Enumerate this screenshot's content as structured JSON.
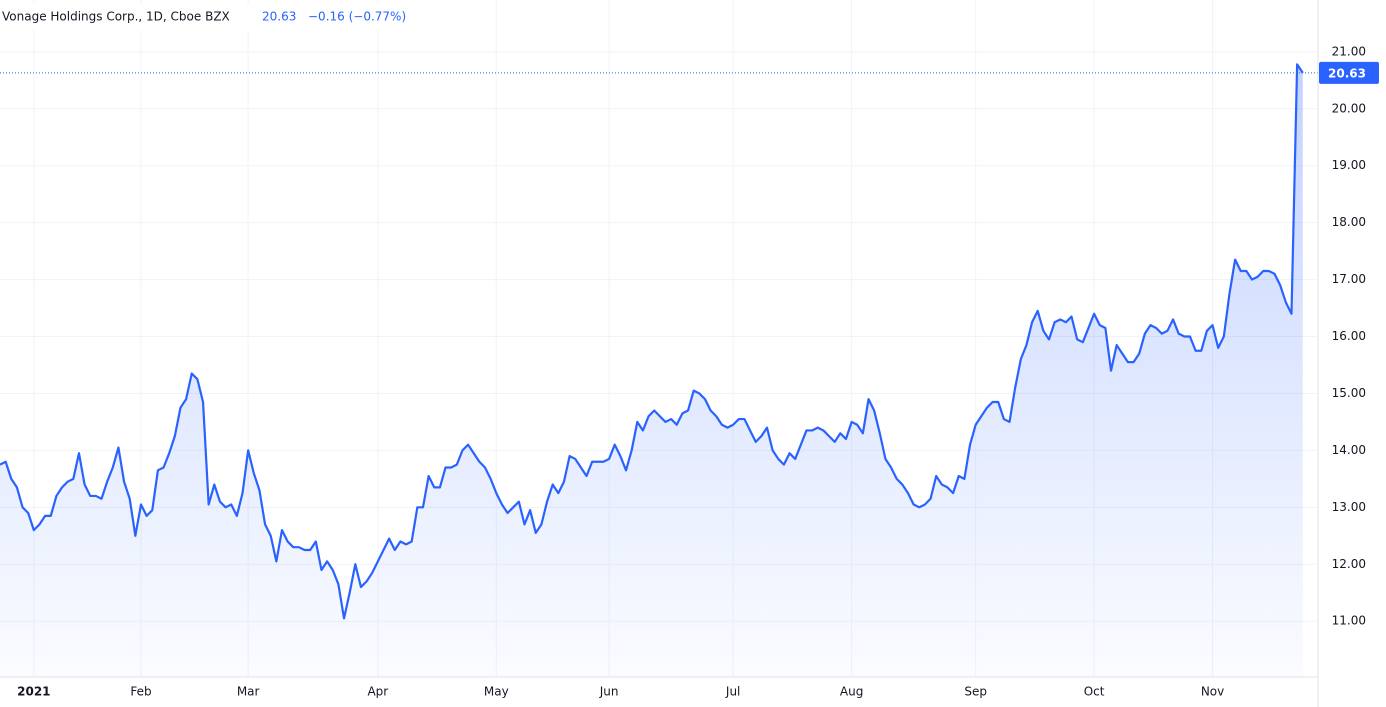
{
  "chart_data": {
    "type": "area",
    "title": "Vonage Holdings Corp., 1D, Cboe BZX",
    "change": "−0.16 (−0.77%)",
    "color": "#2962ff",
    "values": [
      13.75,
      13.8,
      13.5,
      13.35,
      13.0,
      12.9,
      12.6,
      12.7,
      12.85,
      12.85,
      13.2,
      13.35,
      13.45,
      13.5,
      13.95,
      13.4,
      13.2,
      13.2,
      13.15,
      13.45,
      13.7,
      14.05,
      13.45,
      13.15,
      12.5,
      13.05,
      12.85,
      12.95,
      13.65,
      13.7,
      13.95,
      14.25,
      14.75,
      14.9,
      15.35,
      15.25,
      14.85,
      13.05,
      13.4,
      13.1,
      13.0,
      13.05,
      12.85,
      13.25,
      14.0,
      13.6,
      13.3,
      12.7,
      12.5,
      12.05,
      12.6,
      12.4,
      12.3,
      12.3,
      12.25,
      12.25,
      12.4,
      11.9,
      12.05,
      11.9,
      11.65,
      11.05,
      11.5,
      12.0,
      11.6,
      11.7,
      11.85,
      12.05,
      12.25,
      12.45,
      12.25,
      12.4,
      12.35,
      12.4,
      13.0,
      13.0,
      13.55,
      13.35,
      13.35,
      13.7,
      13.7,
      13.75,
      14.0,
      14.1,
      13.95,
      13.8,
      13.7,
      13.5,
      13.25,
      13.05,
      12.9,
      13.0,
      13.1,
      12.7,
      12.95,
      12.55,
      12.7,
      13.1,
      13.4,
      13.25,
      13.45,
      13.9,
      13.85,
      13.7,
      13.55,
      13.8,
      13.8,
      13.8,
      13.85,
      14.1,
      13.9,
      13.65,
      14.0,
      14.5,
      14.35,
      14.6,
      14.7,
      14.6,
      14.5,
      14.55,
      14.45,
      14.65,
      14.7,
      15.05,
      15.0,
      14.9,
      14.7,
      14.6,
      14.45,
      14.4,
      14.45,
      14.55,
      14.55,
      14.35,
      14.15,
      14.25,
      14.4,
      14.0,
      13.85,
      13.75,
      13.95,
      13.85,
      14.1,
      14.35,
      14.35,
      14.4,
      14.35,
      14.25,
      14.15,
      14.3,
      14.2,
      14.5,
      14.45,
      14.3,
      14.9,
      14.7,
      14.3,
      13.85,
      13.7,
      13.5,
      13.4,
      13.25,
      13.05,
      13.0,
      13.05,
      13.15,
      13.55,
      13.4,
      13.35,
      13.25,
      13.55,
      13.5,
      14.1,
      14.45,
      14.6,
      14.75,
      14.85,
      14.85,
      14.55,
      14.5,
      15.1,
      15.6,
      15.85,
      16.25,
      16.45,
      16.1,
      15.95,
      16.25,
      16.3,
      16.25,
      16.35,
      15.95,
      15.9,
      16.15,
      16.4,
      16.2,
      16.15,
      15.4,
      15.85,
      15.7,
      15.55,
      15.55,
      15.7,
      16.05,
      16.2,
      16.15,
      16.05,
      16.1,
      16.3,
      16.05,
      16.0,
      16.0,
      15.75,
      15.75,
      16.1,
      16.2,
      15.8,
      16.0,
      16.75,
      17.35,
      17.15,
      17.15,
      17.0,
      17.05,
      17.15,
      17.15,
      17.1,
      16.9,
      16.6,
      16.4,
      20.78,
      20.63
    ],
    "xlim": [
      0,
      233.7
    ],
    "xticks": [
      {
        "value": 6,
        "label": "2021"
      },
      {
        "value": 25,
        "label": "Feb"
      },
      {
        "value": 44,
        "label": "Mar"
      },
      {
        "value": 67,
        "label": "Apr"
      },
      {
        "value": 88,
        "label": "May"
      },
      {
        "value": 108,
        "label": "Jun"
      },
      {
        "value": 130,
        "label": "Jul"
      },
      {
        "value": 151,
        "label": "Aug"
      },
      {
        "value": 173,
        "label": "Sep"
      },
      {
        "value": 194,
        "label": "Oct"
      },
      {
        "value": 215,
        "label": "Nov"
      }
    ],
    "ylim": [
      10.02,
      21.91
    ],
    "yticks": [
      {
        "value": 11,
        "label": "11.00"
      },
      {
        "value": 12,
        "label": "12.00"
      },
      {
        "value": 13,
        "label": "13.00"
      },
      {
        "value": 14,
        "label": "14.00"
      },
      {
        "value": 15,
        "label": "15.00"
      },
      {
        "value": 16,
        "label": "16.00"
      },
      {
        "value": 17,
        "label": "17.00"
      },
      {
        "value": 18,
        "label": "18.00"
      },
      {
        "value": 19,
        "label": "19.00"
      },
      {
        "value": 20,
        "label": "20.00"
      },
      {
        "value": 21,
        "label": "21.00"
      }
    ],
    "grid": true
  }
}
